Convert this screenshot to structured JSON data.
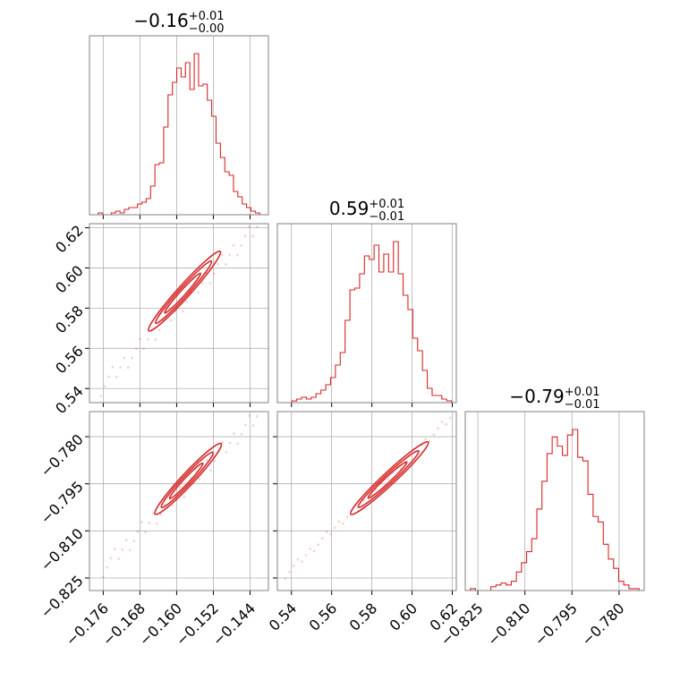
{
  "chart_data": {
    "type": "corner",
    "color": "#d62728",
    "parameters": [
      {
        "range": [
          -0.179,
          -0.14
        ],
        "ticks": [
          -0.176,
          -0.168,
          -0.16,
          -0.152,
          -0.144
        ],
        "tick_labels": [
          "−0.176",
          "−0.168",
          "−0.160",
          "−0.152",
          "−0.144"
        ],
        "title": {
          "median": "−0.16",
          "upper": "+0.01",
          "lower": "−0.00"
        },
        "hist": [
          0,
          0,
          1,
          0,
          0,
          1,
          2,
          1,
          3,
          4,
          4,
          6,
          7,
          9,
          16,
          28,
          29,
          49,
          67,
          74,
          82,
          77,
          85,
          70,
          90,
          72,
          73,
          64,
          55,
          40,
          32,
          24,
          22,
          13,
          10,
          6,
          4,
          2,
          1,
          0,
          0
        ]
      },
      {
        "range": [
          0.533,
          0.622
        ],
        "ticks": [
          0.54,
          0.56,
          0.58,
          0.6,
          0.62
        ],
        "tick_labels": [
          "0.54",
          "0.56",
          "0.58",
          "0.60",
          "0.62"
        ],
        "title": {
          "median": "0.59",
          "upper": "+0.01",
          "lower": "−0.01"
        },
        "hist": [
          0,
          0,
          0,
          1,
          2,
          3,
          2,
          3,
          5,
          7,
          10,
          14,
          21,
          28,
          46,
          63,
          64,
          72,
          82,
          80,
          88,
          73,
          83,
          73,
          90,
          72,
          60,
          52,
          36,
          29,
          18,
          8,
          4,
          4,
          2,
          1,
          0
        ]
      },
      {
        "range": [
          -0.829,
          -0.772
        ],
        "ticks": [
          -0.825,
          -0.81,
          -0.795,
          -0.78
        ],
        "tick_labels": [
          "−0.825",
          "−0.810",
          "−0.795",
          "−0.780"
        ],
        "title": {
          "median": "−0.79",
          "upper": "+0.01",
          "lower": "−0.01"
        },
        "hist": [
          0,
          1,
          0,
          0,
          0,
          2,
          3,
          4,
          3,
          5,
          10,
          15,
          21,
          28,
          44,
          59,
          74,
          83,
          78,
          73,
          84,
          87,
          72,
          70,
          52,
          40,
          37,
          25,
          17,
          12,
          5,
          3,
          1,
          1,
          0
        ]
      }
    ],
    "pairs": [
      {
        "row": 1,
        "col": 0,
        "contour_endpoints": [
          [
            -0.1663,
            0.5682
          ],
          [
            -0.1507,
            0.6077
          ]
        ],
        "scatter_endpoints": [
          [
            -0.1765,
            0.5405
          ],
          [
            -0.1425,
            0.6205
          ]
        ]
      },
      {
        "row": 2,
        "col": 0,
        "contour_endpoints": [
          [
            -0.1649,
            -0.805
          ],
          [
            -0.1505,
            -0.7825
          ]
        ],
        "scatter_endpoints": [
          [
            -0.176,
            -0.822
          ],
          [
            -0.1425,
            -0.7735
          ]
        ]
      },
      {
        "row": 2,
        "col": 1,
        "contour_endpoints": [
          [
            0.569,
            -0.805
          ],
          [
            0.6075,
            -0.782
          ]
        ],
        "scatter_endpoints": [
          [
            0.537,
            -0.824
          ],
          [
            0.619,
            -0.774
          ]
        ]
      }
    ]
  }
}
